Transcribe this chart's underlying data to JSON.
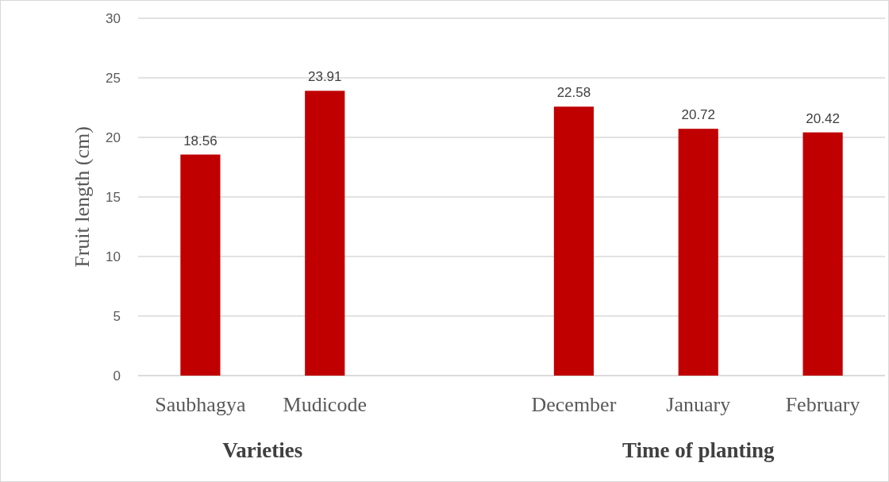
{
  "chart_data": {
    "type": "bar",
    "ylabel": "Fruit length (cm)",
    "categories": [
      "Saubhagya",
      "Mudicode",
      null,
      "December",
      "January",
      "February"
    ],
    "values": [
      18.56,
      23.91,
      null,
      22.58,
      20.72,
      20.42
    ],
    "color": "#c00000",
    "ylim": [
      0,
      30
    ],
    "yticks": [
      0,
      5,
      10,
      15,
      20,
      25,
      30
    ],
    "grid": "y",
    "data_labels": true,
    "annotations": [
      "Varieties",
      "Time of planting"
    ]
  }
}
